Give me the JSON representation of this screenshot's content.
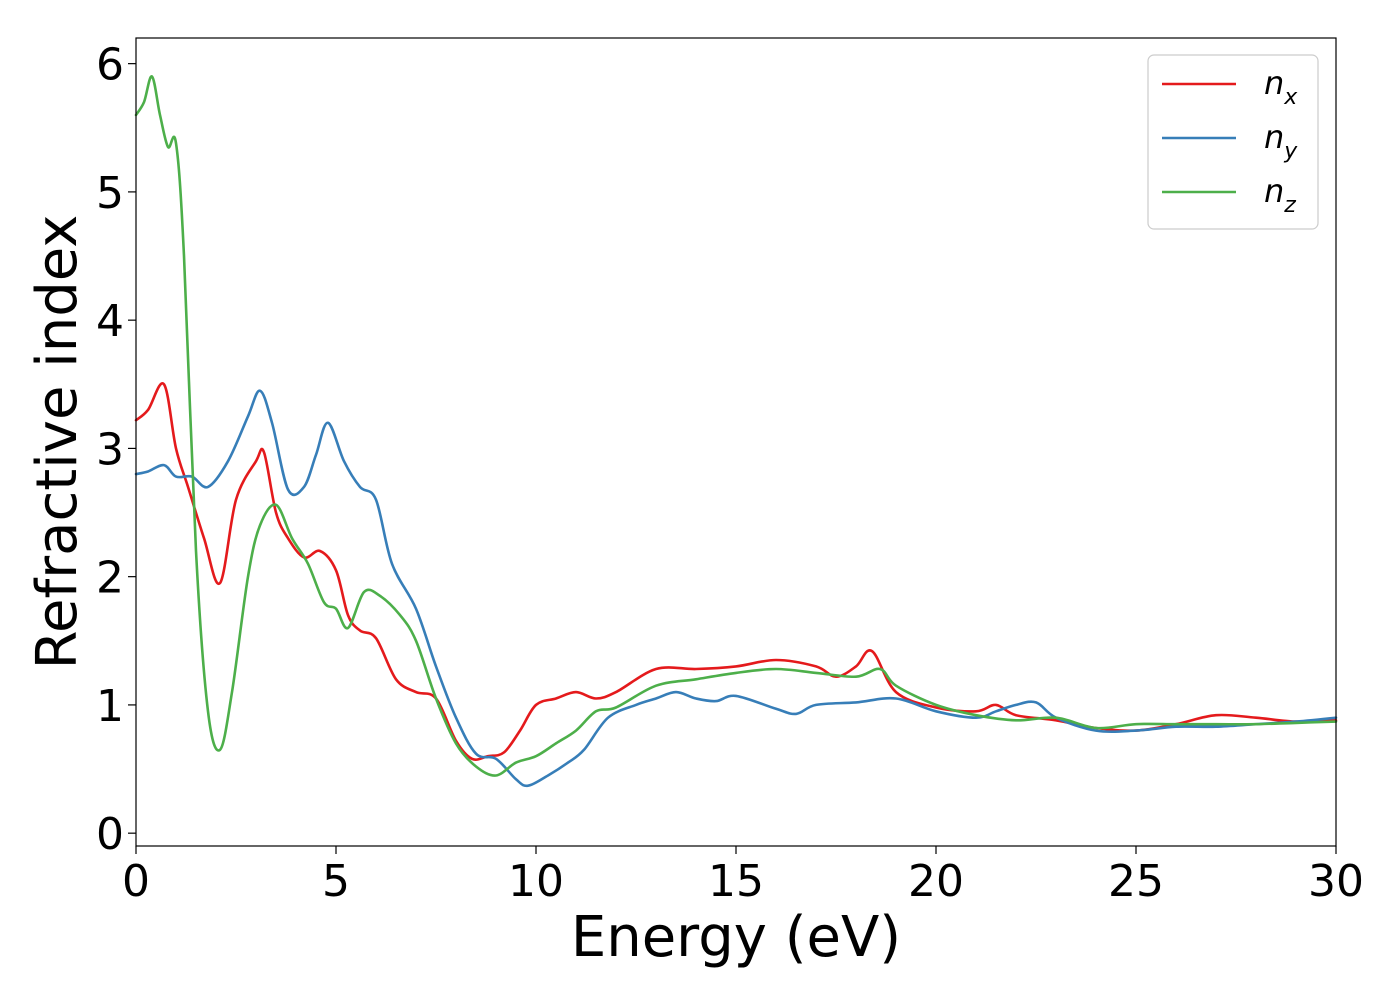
{
  "chart_data": {
    "type": "line",
    "title": "",
    "xlabel": "Energy (eV)",
    "ylabel": "Refractive index",
    "xlim": [
      0,
      30
    ],
    "ylim": [
      -0.1,
      6.2
    ],
    "xticks": [
      0,
      5,
      10,
      15,
      20,
      25,
      30
    ],
    "xtick_labels": [
      "0",
      "5",
      "10",
      "15",
      "20",
      "25",
      "30"
    ],
    "yticks": [
      0,
      1,
      2,
      3,
      4,
      5,
      6
    ],
    "ytick_labels": [
      "0",
      "1",
      "2",
      "3",
      "4",
      "5",
      "6"
    ],
    "grid": false,
    "legend_position": "top-right",
    "series": [
      {
        "name": "n",
        "subscript": "x",
        "color": "#e41a1c",
        "x": [
          0,
          0.3,
          0.7,
          1.0,
          1.3,
          1.7,
          2.1,
          2.5,
          3.0,
          3.2,
          3.5,
          3.8,
          4.2,
          4.6,
          5.0,
          5.3,
          5.6,
          6.0,
          6.5,
          7.0,
          7.5,
          8.0,
          8.4,
          8.8,
          9.2,
          9.6,
          10.0,
          10.5,
          11.0,
          11.5,
          12.0,
          13.0,
          14.0,
          15.0,
          16.0,
          17.0,
          17.5,
          18.0,
          18.4,
          19.0,
          20.0,
          21.0,
          21.5,
          22.0,
          23.0,
          24.0,
          25.0,
          26.0,
          27.0,
          28.0,
          29.0,
          30.0
        ],
        "y": [
          3.22,
          3.3,
          3.5,
          3.0,
          2.7,
          2.3,
          1.95,
          2.6,
          2.9,
          2.97,
          2.5,
          2.3,
          2.15,
          2.2,
          2.05,
          1.7,
          1.58,
          1.52,
          1.2,
          1.1,
          1.05,
          0.72,
          0.58,
          0.6,
          0.63,
          0.8,
          1.0,
          1.05,
          1.1,
          1.05,
          1.1,
          1.28,
          1.28,
          1.3,
          1.35,
          1.3,
          1.22,
          1.3,
          1.42,
          1.1,
          0.98,
          0.95,
          1.0,
          0.92,
          0.88,
          0.82,
          0.8,
          0.85,
          0.92,
          0.9,
          0.87,
          0.88
        ]
      },
      {
        "name": "n",
        "subscript": "y",
        "color": "#377eb8",
        "x": [
          0,
          0.3,
          0.7,
          1.0,
          1.4,
          1.8,
          2.3,
          2.8,
          3.1,
          3.4,
          3.8,
          4.2,
          4.5,
          4.8,
          5.2,
          5.6,
          6.0,
          6.4,
          7.0,
          7.5,
          8.0,
          8.5,
          9.0,
          9.5,
          9.8,
          10.3,
          10.8,
          11.2,
          11.8,
          12.5,
          13.0,
          13.5,
          14.0,
          14.5,
          15.0,
          16.0,
          16.5,
          17.0,
          18.0,
          19.0,
          20.0,
          21.0,
          21.5,
          22.0,
          22.5,
          23.0,
          24.0,
          25.0,
          26.0,
          27.0,
          28.0,
          29.0,
          30.0
        ],
        "y": [
          2.8,
          2.82,
          2.87,
          2.78,
          2.78,
          2.7,
          2.9,
          3.25,
          3.45,
          3.2,
          2.68,
          2.7,
          2.95,
          3.2,
          2.9,
          2.7,
          2.6,
          2.1,
          1.75,
          1.3,
          0.9,
          0.62,
          0.58,
          0.42,
          0.37,
          0.45,
          0.55,
          0.65,
          0.9,
          1.0,
          1.05,
          1.1,
          1.05,
          1.03,
          1.07,
          0.97,
          0.93,
          1.0,
          1.02,
          1.05,
          0.95,
          0.9,
          0.95,
          1.0,
          1.02,
          0.9,
          0.8,
          0.8,
          0.83,
          0.83,
          0.85,
          0.87,
          0.9
        ]
      },
      {
        "name": "n",
        "subscript": "z",
        "color": "#4daf4a",
        "x": [
          0,
          0.2,
          0.4,
          0.6,
          0.8,
          1.0,
          1.2,
          1.5,
          1.8,
          2.1,
          2.4,
          2.8,
          3.1,
          3.5,
          3.9,
          4.3,
          4.7,
          5.0,
          5.3,
          5.7,
          6.1,
          6.6,
          7.0,
          7.5,
          8.0,
          8.5,
          9.0,
          9.5,
          10.0,
          10.5,
          11.0,
          11.5,
          12.0,
          13.0,
          14.0,
          15.0,
          16.0,
          17.0,
          18.0,
          18.6,
          19.0,
          20.0,
          21.0,
          22.0,
          23.0,
          24.0,
          25.0,
          26.0,
          27.0,
          28.0,
          29.0,
          30.0
        ],
        "y": [
          5.6,
          5.7,
          5.9,
          5.6,
          5.35,
          5.38,
          4.5,
          2.2,
          0.95,
          0.65,
          1.1,
          2.0,
          2.4,
          2.56,
          2.3,
          2.1,
          1.8,
          1.75,
          1.6,
          1.88,
          1.85,
          1.7,
          1.5,
          1.05,
          0.7,
          0.52,
          0.45,
          0.55,
          0.6,
          0.7,
          0.8,
          0.95,
          0.98,
          1.15,
          1.2,
          1.25,
          1.28,
          1.25,
          1.22,
          1.28,
          1.15,
          1.0,
          0.92,
          0.88,
          0.9,
          0.82,
          0.85,
          0.85,
          0.85,
          0.85,
          0.86,
          0.87
        ]
      }
    ]
  }
}
